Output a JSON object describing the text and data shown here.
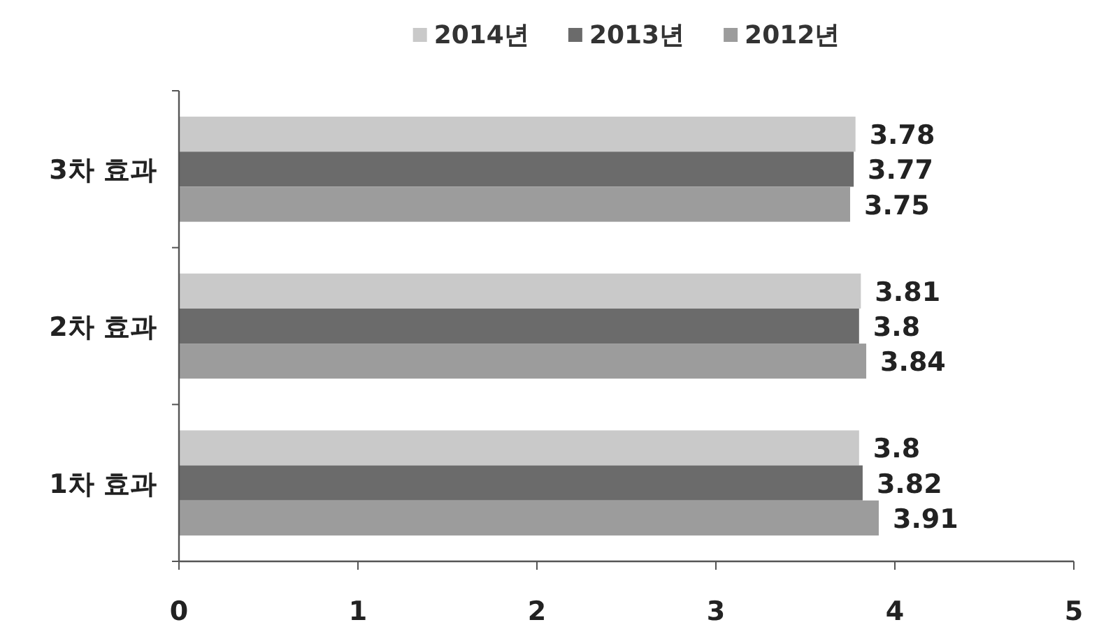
{
  "chart_data": {
    "type": "bar",
    "orientation": "horizontal",
    "categories": [
      "3차 효과",
      "2차 효과",
      "1차 효과"
    ],
    "series": [
      {
        "name": "2014년",
        "color": "#c9c9c9",
        "values": [
          3.78,
          3.81,
          3.8
        ]
      },
      {
        "name": "2013년",
        "color": "#6b6b6b",
        "values": [
          3.77,
          3.8,
          3.82
        ]
      },
      {
        "name": "2012년",
        "color": "#9c9c9c",
        "values": [
          3.75,
          3.84,
          3.91
        ]
      }
    ],
    "xlim": [
      0,
      5
    ],
    "xticks": [
      0,
      1,
      2,
      3,
      4,
      5
    ],
    "data_labels": true,
    "legend": "top"
  }
}
